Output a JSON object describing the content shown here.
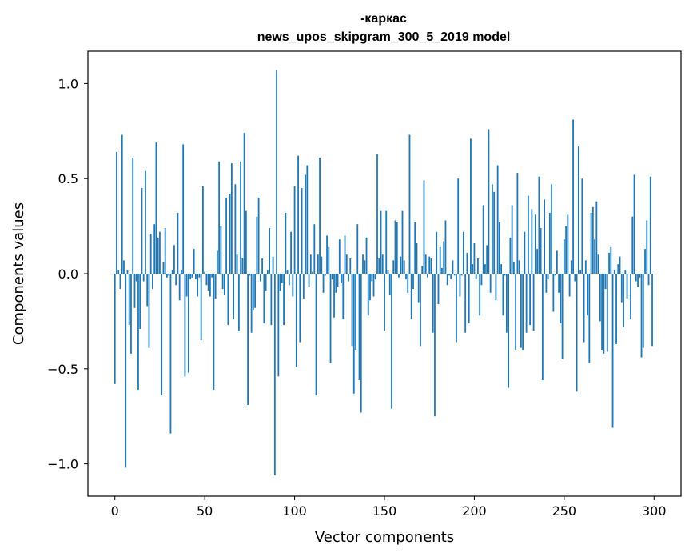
{
  "chart_data": {
    "type": "bar",
    "title_line1": "-каркас",
    "title_line2": "news_upos_skipgram_300_5_2019 model",
    "xlabel": "Vector components",
    "ylabel": "Components values",
    "xlim": [
      -15,
      315
    ],
    "ylim": [
      -1.17,
      1.17
    ],
    "x_ticks": [
      0,
      50,
      100,
      150,
      200,
      250,
      300
    ],
    "x_tick_labels": [
      "0",
      "50",
      "100",
      "150",
      "200",
      "250",
      "300"
    ],
    "y_ticks": [
      -1.0,
      -0.5,
      0.0,
      0.5,
      1.0
    ],
    "y_tick_labels": [
      "−1.0",
      "−0.5",
      "0.0",
      "0.5",
      "1.0"
    ],
    "bar_color": "#1f77b4",
    "values": [
      -0.58,
      0.64,
      0.02,
      -0.08,
      0.73,
      0.07,
      -1.02,
      0.02,
      -0.27,
      -0.42,
      0.61,
      -0.18,
      -0.04,
      -0.61,
      -0.29,
      0.45,
      -0.04,
      0.54,
      -0.17,
      -0.39,
      0.21,
      -0.08,
      0.26,
      0.69,
      0.19,
      0.22,
      -0.64,
      0.06,
      0.24,
      -0.02,
      -0.01,
      -0.84,
      0.02,
      0.15,
      -0.06,
      0.32,
      -0.14,
      0.02,
      0.68,
      -0.54,
      -0.12,
      -0.52,
      -0.03,
      -0.02,
      0.13,
      -0.03,
      -0.12,
      -0.02,
      -0.35,
      0.46,
      0.01,
      -0.06,
      -0.09,
      -0.12,
      -0.02,
      -0.61,
      -0.13,
      0.12,
      0.59,
      0.25,
      -0.08,
      -0.11,
      0.4,
      -0.27,
      0.42,
      0.58,
      -0.24,
      0.47,
      0.1,
      -0.3,
      0.59,
      0.08,
      0.74,
      0.33,
      -0.69,
      -0.01,
      -0.31,
      -0.19,
      -0.18,
      0.3,
      0.4,
      -0.04,
      0.08,
      -0.26,
      -0.09,
      0.02,
      0.24,
      -0.27,
      0.09,
      -1.06,
      1.07,
      -0.54,
      -0.09,
      -0.05,
      -0.27,
      0.32,
      0.02,
      -0.06,
      0.22,
      -0.12,
      0.46,
      -0.49,
      0.62,
      -0.36,
      0.45,
      -0.13,
      0.52,
      0.57,
      -0.07,
      0.1,
      0.01,
      0.26,
      -0.64,
      0.1,
      0.61,
      0.09,
      -0.1,
      -0.01,
      0.2,
      0.14,
      -0.47,
      -0.03,
      -0.23,
      -0.1,
      -0.07,
      0.18,
      -0.05,
      -0.24,
      0.2,
      0.1,
      -0.04,
      0.08,
      -0.38,
      -0.63,
      -0.4,
      0.26,
      -0.56,
      -0.73,
      0.1,
      0.07,
      0.19,
      -0.22,
      -0.14,
      -0.04,
      -0.12,
      -0.03,
      0.63,
      0.08,
      0.33,
      0.1,
      -0.3,
      0.33,
      0.02,
      -0.11,
      -0.71,
      0.07,
      0.28,
      0.27,
      -0.02,
      0.09,
      0.33,
      0.07,
      -0.03,
      -0.1,
      0.73,
      -0.24,
      -0.08,
      0.27,
      0.16,
      -0.15,
      -0.38,
      0.04,
      0.49,
      0.1,
      -0.02,
      0.09,
      0.08,
      -0.31,
      -0.75,
      0.22,
      -0.16,
      0.14,
      0.03,
      0.17,
      0.28,
      -0.06,
      -0.01,
      -0.03,
      0.07,
      -0.01,
      -0.36,
      0.5,
      -0.12,
      -0.01,
      0.22,
      -0.31,
      0.11,
      -0.26,
      0.71,
      0.05,
      0.16,
      -0.03,
      0.08,
      -0.22,
      -0.06,
      0.36,
      0.05,
      0.15,
      0.76,
      -0.1,
      0.47,
      0.43,
      -0.14,
      0.57,
      0.27,
      0.05,
      -0.22,
      -0.01,
      -0.31,
      -0.6,
      0.19,
      0.36,
      0.06,
      -0.4,
      0.53,
      0.07,
      -0.39,
      -0.4,
      0.22,
      -0.31,
      0.41,
      -0.27,
      0.34,
      -0.3,
      0.31,
      0.13,
      0.51,
      0.24,
      -0.56,
      0.39,
      -0.1,
      -0.03,
      0.32,
      0.47,
      -0.2,
      -0.01,
      0.12,
      -0.1,
      -0.26,
      -0.45,
      0.18,
      0.25,
      0.31,
      -0.12,
      0.07,
      0.81,
      -0.04,
      -0.62,
      0.67,
      0.02,
      0.5,
      -0.36,
      0.07,
      -0.22,
      -0.47,
      0.32,
      0.35,
      0.18,
      0.38,
      0.1,
      -0.25,
      -0.4,
      -0.42,
      -0.08,
      -0.41,
      0.11,
      0.14,
      -0.81,
      0.02,
      -0.37,
      0.05,
      0.09,
      -0.15,
      -0.28,
      0.02,
      -0.13,
      0.0,
      -0.24,
      0.3,
      0.52,
      -0.04,
      -0.07,
      -0.02,
      -0.44,
      -0.39,
      0.13,
      0.28,
      -0.06,
      0.51,
      -0.38
    ]
  }
}
